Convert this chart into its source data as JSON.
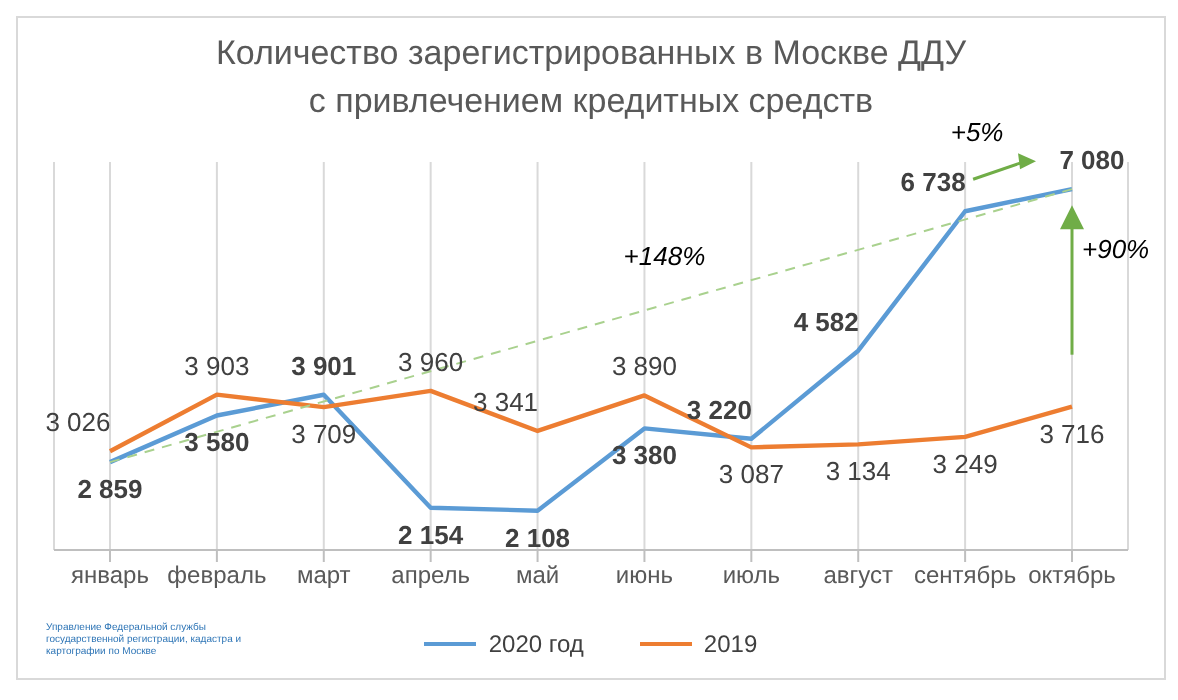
{
  "chart_data": {
    "type": "line",
    "title": "Количество зарегистрированных в Москве ДДУ\nс привлечением кредитных средств",
    "categories": [
      "январь",
      "февраль",
      "март",
      "апрель",
      "май",
      "июнь",
      "июль",
      "август",
      "сентябрь",
      "октябрь"
    ],
    "series": [
      {
        "name": "2020 год",
        "color": "#5b9bd5",
        "values": [
          2859,
          3580,
          3901,
          2154,
          2108,
          3380,
          3220,
          4582,
          6738,
          7080
        ],
        "value_labels": [
          "2 859",
          "3 580",
          "3 901",
          "2 154",
          "2 108",
          "3 380",
          "3 220",
          "4 582",
          "6 738",
          "7 080"
        ]
      },
      {
        "name": "2019",
        "color": "#ed7d31",
        "values": [
          3026,
          3903,
          3709,
          3960,
          3341,
          3890,
          3087,
          3134,
          3249,
          3716
        ],
        "value_labels": [
          "3 026",
          "3 903",
          "3 709",
          "3 960",
          "3 341",
          "3 890",
          "3 087",
          "3 134",
          "3 249",
          "3 716"
        ]
      },
      {
        "type": "line",
        "color": "#a9d18e",
        "line_style": "dashed",
        "values": [
          2859,
          null,
          null,
          null,
          null,
          null,
          null,
          null,
          null,
          7080
        ]
      }
    ],
    "ylim": [
      1500,
      7500
    ],
    "tick_labels": "x",
    "grid": "x",
    "legend": "bottom",
    "marker": "none",
    "annotations": [
      "+148%",
      "+5%",
      "+90%",
      "Управление Федеральной службы государственной регистрации, кадастра и картографии по Москве"
    ]
  }
}
